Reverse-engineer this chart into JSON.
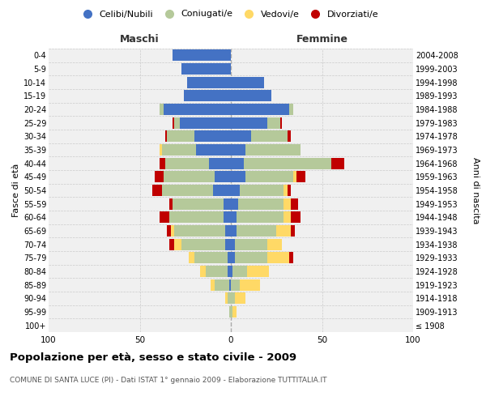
{
  "age_groups": [
    "100+",
    "95-99",
    "90-94",
    "85-89",
    "80-84",
    "75-79",
    "70-74",
    "65-69",
    "60-64",
    "55-59",
    "50-54",
    "45-49",
    "40-44",
    "35-39",
    "30-34",
    "25-29",
    "20-24",
    "15-19",
    "10-14",
    "5-9",
    "0-4"
  ],
  "birth_years": [
    "≤ 1908",
    "1909-1913",
    "1914-1918",
    "1919-1923",
    "1924-1928",
    "1929-1933",
    "1934-1938",
    "1939-1943",
    "1944-1948",
    "1949-1953",
    "1954-1958",
    "1959-1963",
    "1964-1968",
    "1969-1973",
    "1974-1978",
    "1979-1983",
    "1984-1988",
    "1989-1993",
    "1994-1998",
    "1999-2003",
    "2004-2008"
  ],
  "maschi": {
    "celibi": [
      0,
      0,
      0,
      1,
      2,
      2,
      3,
      3,
      4,
      4,
      10,
      9,
      12,
      19,
      20,
      28,
      37,
      26,
      24,
      27,
      32
    ],
    "coniugati": [
      0,
      1,
      2,
      8,
      12,
      18,
      24,
      28,
      30,
      28,
      28,
      28,
      24,
      19,
      15,
      3,
      2,
      0,
      0,
      0,
      0
    ],
    "vedovi": [
      0,
      0,
      1,
      2,
      3,
      3,
      4,
      2,
      0,
      0,
      0,
      0,
      0,
      1,
      0,
      0,
      0,
      0,
      0,
      0,
      0
    ],
    "divorziati": [
      0,
      0,
      0,
      0,
      0,
      0,
      3,
      2,
      5,
      2,
      5,
      5,
      3,
      0,
      1,
      1,
      0,
      0,
      0,
      0,
      0
    ]
  },
  "femmine": {
    "nubili": [
      0,
      0,
      0,
      0,
      1,
      2,
      2,
      3,
      3,
      4,
      5,
      8,
      7,
      8,
      11,
      20,
      32,
      22,
      18,
      0,
      0
    ],
    "coniugate": [
      0,
      1,
      2,
      5,
      8,
      18,
      18,
      22,
      26,
      25,
      24,
      26,
      48,
      30,
      20,
      7,
      2,
      0,
      0,
      0,
      0
    ],
    "vedove": [
      0,
      2,
      6,
      11,
      12,
      12,
      8,
      8,
      4,
      4,
      2,
      2,
      0,
      0,
      0,
      0,
      0,
      0,
      0,
      0,
      0
    ],
    "divorziate": [
      0,
      0,
      0,
      0,
      0,
      2,
      0,
      2,
      5,
      4,
      2,
      5,
      7,
      0,
      2,
      1,
      0,
      0,
      0,
      0,
      0
    ]
  },
  "colors": {
    "celibi_nubili": "#4472c4",
    "coniugati": "#b5c99a",
    "vedovi": "#ffd966",
    "divorziati": "#c00000"
  },
  "xlim": 100,
  "title": "Popolazione per età, sesso e stato civile - 2009",
  "subtitle": "COMUNE DI SANTA LUCE (PI) - Dati ISTAT 1° gennaio 2009 - Elaborazione TUTTITALIA.IT",
  "ylabel_left": "Fasce di età",
  "ylabel_right": "Anni di nascita",
  "xlabel_left": "Maschi",
  "xlabel_right": "Femmine",
  "bg_color": "#f0f0f0"
}
